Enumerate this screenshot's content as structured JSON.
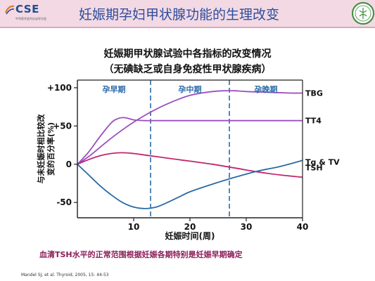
{
  "slide": {
    "title": "妊娠期孕妇甲状腺功能的生理改变",
    "logo_text": "CSE",
    "logo_subtext": "中华医学会内分泌学分会",
    "footnote": "血清TSH水平的正常范围根据妊娠各期特别是妊娠早期确定",
    "reference": "Mandel SJ, et al.  Thyroid, 2005, 15: 44-53"
  },
  "colors": {
    "header_bg": "#f3d9e4",
    "title_blue": "#2c4e9c",
    "purple_line": "#9b4fc0",
    "tsh_line": "#c0266f",
    "tgtv_line": "#2a6aa8",
    "divider": "#2a6aa8",
    "footnote": "#8b1f5a"
  },
  "chart_data": {
    "type": "line",
    "title": "妊娠期甲状腺试验中各指标的改变情况",
    "subtitle": "（无碘缺乏或自身免疫性甲状腺疾病）",
    "xlabel": "妊娠时间(周)",
    "ylabel": "与未妊娠时相比较改变的百分率(%)",
    "xlim": [
      0,
      40
    ],
    "ylim": [
      -70,
      110
    ],
    "xticks": [
      {
        "value": 10,
        "label": "10"
      },
      {
        "value": 20,
        "label": "20"
      },
      {
        "value": 30,
        "label": "30"
      },
      {
        "value": 40,
        "label": "40"
      }
    ],
    "yticks": [
      {
        "value": 100,
        "label": "+100"
      },
      {
        "value": 50,
        "label": "+50"
      },
      {
        "value": 0,
        "label": "0"
      },
      {
        "value": -50,
        "label": "-50"
      }
    ],
    "trimesters": [
      {
        "label": "孕早期",
        "start": 0,
        "end": 13
      },
      {
        "label": "孕中期",
        "start": 13,
        "end": 27
      },
      {
        "label": "孕晚期",
        "start": 27,
        "end": 40
      }
    ],
    "grid": false,
    "series": [
      {
        "name": "TBG",
        "color": "#9b4fc0",
        "x": [
          0,
          2,
          4,
          6,
          8,
          10,
          12,
          14,
          16,
          18,
          20,
          22,
          24,
          26,
          28,
          30,
          34,
          38,
          40
        ],
        "y": [
          0,
          10,
          22,
          34,
          45,
          55,
          64,
          72,
          79,
          85,
          90,
          93,
          95,
          96,
          96,
          95,
          94,
          93,
          93
        ]
      },
      {
        "name": "TT4",
        "color": "#9b4fc0",
        "x": [
          0,
          2,
          4,
          6,
          7,
          8,
          9,
          10,
          12,
          14,
          20,
          30,
          40
        ],
        "y": [
          0,
          16,
          36,
          54,
          59,
          61,
          60,
          58,
          57,
          57,
          57,
          57,
          57
        ]
      },
      {
        "name": "TSH",
        "color": "#c0266f",
        "x": [
          0,
          2,
          4,
          6,
          8,
          10,
          12,
          14,
          16,
          20,
          24,
          28,
          32,
          36,
          40
        ],
        "y": [
          0,
          6,
          11,
          14,
          15,
          14,
          12,
          10,
          8,
          4,
          0,
          -5,
          -10,
          -14,
          -17
        ]
      },
      {
        "name": "Tg & TV",
        "color": "#2a6aa8",
        "x": [
          0,
          2,
          4,
          6,
          8,
          10,
          12,
          14,
          16,
          18,
          20,
          24,
          28,
          32,
          36,
          40
        ],
        "y": [
          0,
          -14,
          -28,
          -40,
          -50,
          -56,
          -58,
          -56,
          -50,
          -43,
          -36,
          -26,
          -17,
          -9,
          -3,
          5
        ]
      }
    ]
  }
}
